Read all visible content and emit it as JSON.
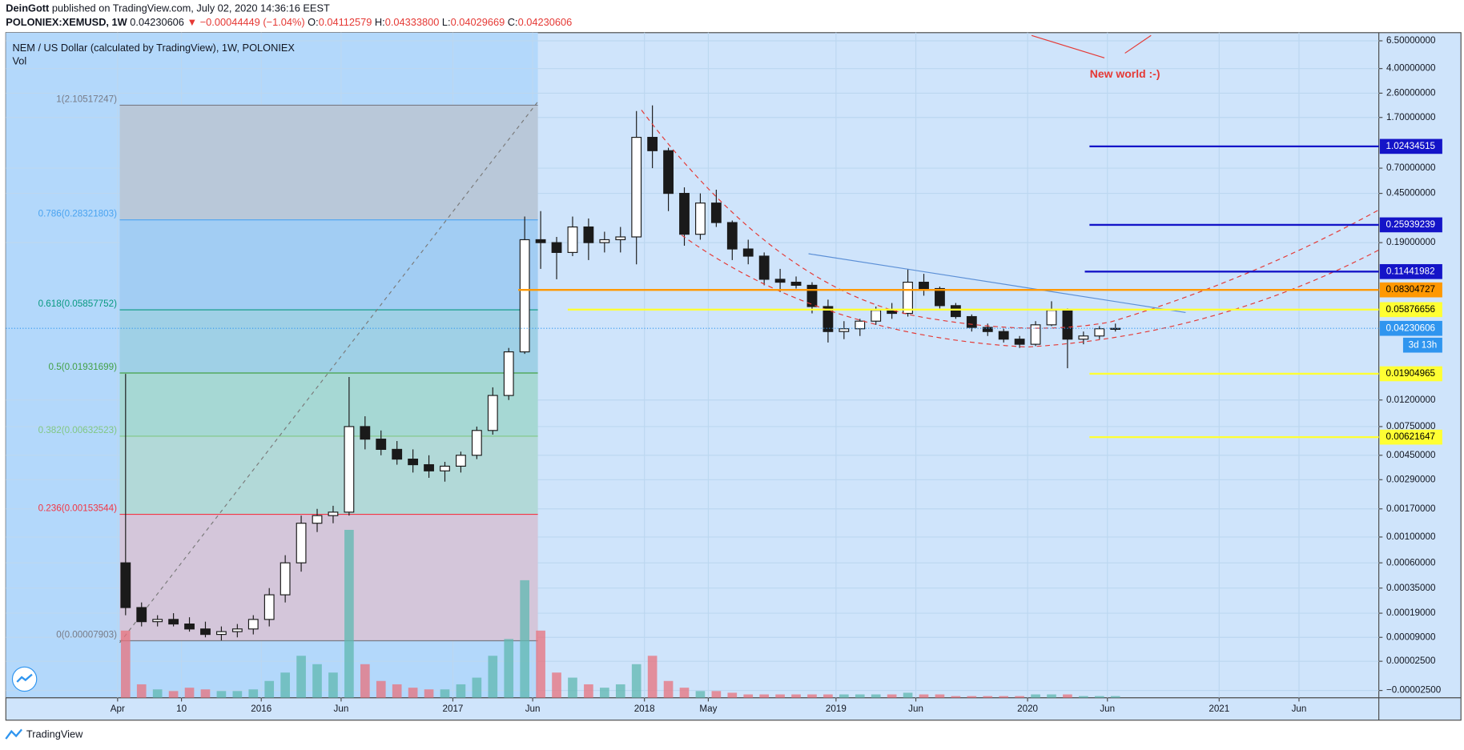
{
  "header": {
    "author": "DeinGott",
    "published": "published on TradingView.com, July 02, 2020 14:36:16 EEST",
    "symbol": "POLONIEX:XEMUSD, 1W",
    "price": "0.04230606",
    "change": "▼ −0.00044449 (−1.04%)",
    "ohlc": [
      {
        "key": "O:",
        "value": "0.04112579"
      },
      {
        "key": "H:",
        "value": "0.04333800"
      },
      {
        "key": "L:",
        "value": "0.04029669"
      },
      {
        "key": "C:",
        "value": "0.04230606"
      }
    ]
  },
  "chart_data": {
    "type": "candlestick",
    "title": "NEM / US Dollar (calculated by TradingView), 1W, POLONIEX",
    "volume_label": "Vol",
    "log_scale": true,
    "grid": true,
    "up_color": "#ffffff",
    "down_color": "#1a1a1a",
    "volume_up_color": "#5fb8b0",
    "volume_down_color": "#e8727c",
    "annotation": "New world :-)",
    "countdown": "3d 13h",
    "ylim": [
      -3.4e-05,
      7.5
    ],
    "yticks": [
      {
        "value": 6.5,
        "label": "6.50000000"
      },
      {
        "value": 4,
        "label": "4.00000000"
      },
      {
        "value": 2.6,
        "label": "2.60000000"
      },
      {
        "value": 1.7,
        "label": "1.70000000"
      },
      {
        "value": 0.7,
        "label": "0.70000000"
      },
      {
        "value": 0.45,
        "label": "0.45000000"
      },
      {
        "value": 0.19,
        "label": "0.19000000"
      },
      {
        "value": 0.012,
        "label": "0.01200000"
      },
      {
        "value": 0.0075,
        "label": "0.00750000"
      },
      {
        "value": 0.0045,
        "label": "0.00450000"
      },
      {
        "value": 0.0029,
        "label": "0.00290000"
      },
      {
        "value": 0.0017,
        "label": "0.00170000"
      },
      {
        "value": 0.001,
        "label": "0.00100000"
      },
      {
        "value": 0.0006,
        "label": "0.00060000"
      },
      {
        "value": 0.00035,
        "label": "0.00035000"
      },
      {
        "value": 0.00019,
        "label": "0.00019000"
      },
      {
        "value": 9e-05,
        "label": "0.00009000"
      },
      {
        "value": 2.5e-05,
        "label": "0.00002500"
      },
      {
        "value": -2.5e-05,
        "label": "−0.00002500"
      }
    ],
    "xlim": [
      "2014-09",
      "2021-11"
    ],
    "xticks": [
      {
        "value": "2015-04",
        "label": "Apr"
      },
      {
        "value": "2015-08",
        "label": "10"
      },
      {
        "value": "2016-01",
        "label": "2016"
      },
      {
        "value": "2016-06",
        "label": "Jun"
      },
      {
        "value": "2017-01",
        "label": "2017"
      },
      {
        "value": "2017-06",
        "label": "Jun"
      },
      {
        "value": "2018-01",
        "label": "2018"
      },
      {
        "value": "2018-05",
        "label": "May"
      },
      {
        "value": "2019-01",
        "label": "2019"
      },
      {
        "value": "2019-06",
        "label": "Jun"
      },
      {
        "value": "2020-01",
        "label": "2020"
      },
      {
        "value": "2020-06",
        "label": "Jun"
      },
      {
        "value": "2021-01",
        "label": "2021"
      },
      {
        "value": "2021-06",
        "label": "Jun"
      }
    ],
    "x": [
      "2015-04",
      "2015-05",
      "2015-06",
      "2015-07",
      "2015-08",
      "2015-09",
      "2015-10",
      "2015-11",
      "2015-12",
      "2016-01",
      "2016-02",
      "2016-03",
      "2016-04",
      "2016-05",
      "2016-06",
      "2016-07",
      "2016-08",
      "2016-09",
      "2016-10",
      "2016-11",
      "2016-12",
      "2017-01",
      "2017-02",
      "2017-03",
      "2017-04",
      "2017-05",
      "2017-06",
      "2017-07",
      "2017-08",
      "2017-09",
      "2017-10",
      "2017-11",
      "2017-12",
      "2018-01",
      "2018-02",
      "2018-03",
      "2018-04",
      "2018-05",
      "2018-06",
      "2018-07",
      "2018-08",
      "2018-09",
      "2018-10",
      "2018-11",
      "2018-12",
      "2019-01",
      "2019-02",
      "2019-03",
      "2019-04",
      "2019-05",
      "2019-06",
      "2019-07",
      "2019-08",
      "2019-09",
      "2019-10",
      "2019-11",
      "2019-12",
      "2020-01",
      "2020-02",
      "2020-03",
      "2020-04",
      "2020-05",
      "2020-06"
    ],
    "candles": [
      [
        0.0006,
        0.019,
        0.00018,
        0.00022
      ],
      [
        0.00022,
        0.00025,
        0.00013,
        0.00015
      ],
      [
        0.00015,
        0.00018,
        0.00013,
        0.00016
      ],
      [
        0.00016,
        0.00019,
        0.00013,
        0.00014
      ],
      [
        0.00014,
        0.00017,
        0.00011,
        0.00012
      ],
      [
        0.00012,
        0.00015,
        9e-05,
        0.0001
      ],
      [
        0.0001,
        0.00013,
        8e-05,
        0.00011
      ],
      [
        0.00011,
        0.00014,
        9e-05,
        0.00012
      ],
      [
        0.00012,
        0.00018,
        0.0001,
        0.00016
      ],
      [
        0.00016,
        0.00035,
        0.00013,
        0.0003
      ],
      [
        0.0003,
        0.0007,
        0.00025,
        0.0006
      ],
      [
        0.0006,
        0.0015,
        0.0005,
        0.0013
      ],
      [
        0.0013,
        0.0017,
        0.0011,
        0.0015
      ],
      [
        0.0015,
        0.0018,
        0.0013,
        0.0016
      ],
      [
        0.0016,
        0.018,
        0.0015,
        0.0075
      ],
      [
        0.0075,
        0.009,
        0.005,
        0.006
      ],
      [
        0.006,
        0.007,
        0.0045,
        0.005
      ],
      [
        0.005,
        0.0058,
        0.0038,
        0.0042
      ],
      [
        0.0042,
        0.005,
        0.0033,
        0.0038
      ],
      [
        0.0038,
        0.0045,
        0.003,
        0.0034
      ],
      [
        0.0034,
        0.004,
        0.0028,
        0.0037
      ],
      [
        0.0037,
        0.0048,
        0.0033,
        0.0045
      ],
      [
        0.0045,
        0.0075,
        0.0042,
        0.007
      ],
      [
        0.007,
        0.015,
        0.0065,
        0.013
      ],
      [
        0.013,
        0.03,
        0.012,
        0.028
      ],
      [
        0.028,
        0.3,
        0.027,
        0.2
      ],
      [
        0.2,
        0.33,
        0.12,
        0.19
      ],
      [
        0.19,
        0.21,
        0.1,
        0.16
      ],
      [
        0.16,
        0.3,
        0.15,
        0.25
      ],
      [
        0.25,
        0.29,
        0.14,
        0.19
      ],
      [
        0.19,
        0.23,
        0.16,
        0.2
      ],
      [
        0.2,
        0.25,
        0.16,
        0.21
      ],
      [
        0.21,
        1.9,
        0.13,
        1.2
      ],
      [
        1.2,
        2.1,
        0.7,
        0.95
      ],
      [
        0.95,
        1.0,
        0.33,
        0.45
      ],
      [
        0.45,
        0.5,
        0.18,
        0.22
      ],
      [
        0.22,
        0.45,
        0.2,
        0.38
      ],
      [
        0.38,
        0.48,
        0.25,
        0.27
      ],
      [
        0.27,
        0.28,
        0.14,
        0.17
      ],
      [
        0.17,
        0.2,
        0.13,
        0.15
      ],
      [
        0.15,
        0.16,
        0.09,
        0.1
      ],
      [
        0.1,
        0.12,
        0.08,
        0.095
      ],
      [
        0.095,
        0.105,
        0.085,
        0.09
      ],
      [
        0.09,
        0.095,
        0.055,
        0.062
      ],
      [
        0.062,
        0.07,
        0.033,
        0.04
      ],
      [
        0.04,
        0.048,
        0.035,
        0.042
      ],
      [
        0.042,
        0.05,
        0.037,
        0.048
      ],
      [
        0.048,
        0.062,
        0.045,
        0.058
      ],
      [
        0.058,
        0.066,
        0.05,
        0.055
      ],
      [
        0.055,
        0.12,
        0.052,
        0.095
      ],
      [
        0.095,
        0.11,
        0.075,
        0.085
      ],
      [
        0.085,
        0.088,
        0.06,
        0.063
      ],
      [
        0.063,
        0.066,
        0.05,
        0.052
      ],
      [
        0.052,
        0.054,
        0.04,
        0.043
      ],
      [
        0.043,
        0.046,
        0.037,
        0.04
      ],
      [
        0.04,
        0.042,
        0.033,
        0.035
      ],
      [
        0.035,
        0.037,
        0.03,
        0.032
      ],
      [
        0.032,
        0.048,
        0.031,
        0.045
      ],
      [
        0.045,
        0.068,
        0.044,
        0.058
      ],
      [
        0.058,
        0.06,
        0.021,
        0.035
      ],
      [
        0.035,
        0.04,
        0.032,
        0.037
      ],
      [
        0.037,
        0.044,
        0.035,
        0.042
      ],
      [
        0.042,
        0.046,
        0.04,
        0.0423
      ]
    ],
    "volume": [
      40,
      8,
      5,
      4,
      6,
      5,
      4,
      4,
      5,
      10,
      15,
      25,
      20,
      15,
      100,
      20,
      10,
      8,
      6,
      5,
      5,
      8,
      12,
      25,
      35,
      70,
      40,
      15,
      12,
      8,
      6,
      8,
      20,
      25,
      10,
      6,
      4,
      4,
      3,
      2,
      2,
      2,
      2,
      2,
      2,
      2,
      2,
      2,
      2,
      3,
      2,
      2,
      1,
      1,
      1,
      1,
      1,
      2,
      2,
      2,
      1,
      1,
      1
    ],
    "fib_levels": [
      {
        "label": "1(2.10517247)",
        "value": 2.10517247,
        "color": "#787b86",
        "fill": "#b9c8d9"
      },
      {
        "label": "0.786(0.28321803)",
        "value": 0.28321803,
        "color": "#4aa3f0",
        "fill": "#a2cdf3"
      },
      {
        "label": "0.618(0.05857752)",
        "value": 0.05857752,
        "color": "#089981",
        "fill": "#9fd0e6"
      },
      {
        "label": "0.5(0.01931699)",
        "value": 0.01931699,
        "color": "#43a047",
        "fill": "#a6d8d4"
      },
      {
        "label": "0.382(0.00632523)",
        "value": 0.00632523,
        "color": "#81c784",
        "fill": "#b2d9d8"
      },
      {
        "label": "0.236(0.00153544)",
        "value": 0.00153544,
        "color": "#f23645",
        "fill": "#d4c6da"
      },
      {
        "label": "0(0.00007903)",
        "value": 7.903e-05,
        "color": "#787b86"
      }
    ],
    "price_lines": [
      {
        "value": 1.02434515,
        "color": "#1414c8",
        "text_color": "#ffffff"
      },
      {
        "value": 0.25939239,
        "color": "#1414c8",
        "text_color": "#ffffff"
      },
      {
        "value": 0.11441982,
        "color": "#1414c8",
        "text_color": "#ffffff"
      },
      {
        "value": 0.08304727,
        "color": "#ff9800",
        "text_color": "#000000"
      },
      {
        "value": 0.05876656,
        "color": "#ffff33",
        "text_color": "#000000"
      },
      {
        "value": 0.04230606,
        "color": "#2f95ef",
        "text_color": "#ffffff"
      },
      {
        "value": 0.01904965,
        "color": "#ffff33",
        "text_color": "#000000"
      },
      {
        "value": 0.00621647,
        "color": "#ffff33",
        "text_color": "#000000"
      }
    ]
  },
  "footer": {
    "brand": "TradingView"
  }
}
